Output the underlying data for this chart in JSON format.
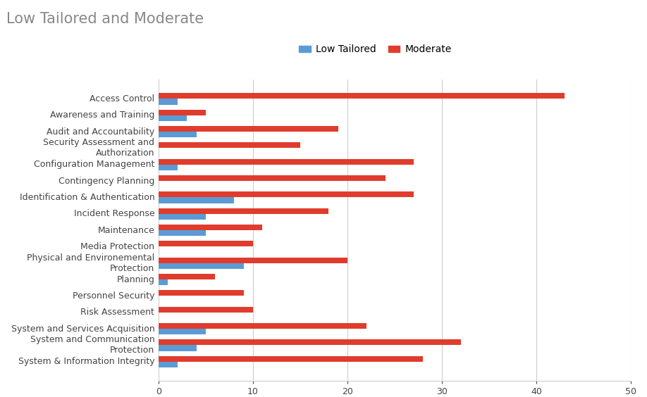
{
  "title": "Low Tailored and Moderate",
  "categories": [
    "Access Control",
    "Awareness and Training",
    "Audit and Accountability",
    "Security Assessment and\nAuthorization",
    "Configuration Management",
    "Contingency Planning",
    "Identification & Authentication",
    "Incident Response",
    "Maintenance",
    "Media Protection",
    "Physical and Environemental\nProtection",
    "Planning",
    "Personnel Security",
    "Risk Assessment",
    "System and Services Acquisition",
    "System and Communication\nProtection",
    "System & Information Integrity"
  ],
  "low_tailored": [
    2,
    3,
    4,
    0,
    2,
    0,
    8,
    5,
    5,
    0,
    9,
    1,
    0,
    0,
    5,
    4,
    2
  ],
  "moderate": [
    43,
    5,
    19,
    15,
    27,
    24,
    27,
    18,
    11,
    10,
    20,
    6,
    9,
    10,
    22,
    32,
    28
  ],
  "low_color": "#5B9BD5",
  "moderate_color": "#E03C2D",
  "xlim": [
    0,
    50
  ],
  "xticks": [
    0,
    10,
    20,
    30,
    40,
    50
  ],
  "legend_labels": [
    "Low Tailored",
    "Moderate"
  ],
  "bar_height": 0.35,
  "title_fontsize": 15,
  "tick_fontsize": 9,
  "legend_fontsize": 10,
  "grid_color": "#cccccc",
  "title_color": "#888888"
}
